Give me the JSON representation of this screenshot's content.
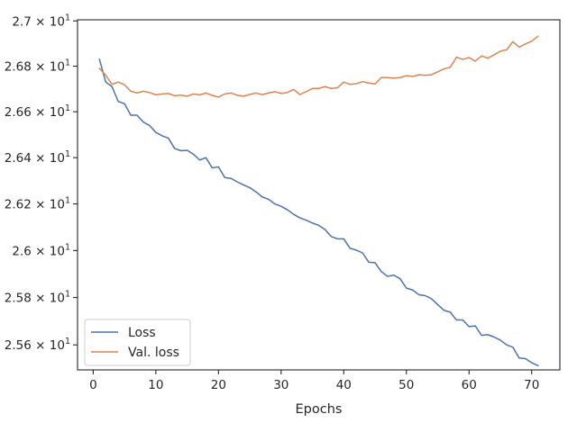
{
  "chart_data": {
    "type": "line",
    "title": "",
    "xlabel": "Epochs",
    "ylabel": "",
    "xlim": [
      -2.5,
      74.5
    ],
    "ylim": [
      25.495,
      27.005
    ],
    "yscale": "log",
    "grid": false,
    "legend_position": "lower-left",
    "x_ticks": [
      0,
      10,
      20,
      30,
      40,
      50,
      60,
      70
    ],
    "y_ticks": [
      {
        "value": 25.6,
        "mantissa": "2.56",
        "base": "10",
        "exp": "1"
      },
      {
        "value": 25.8,
        "mantissa": "2.58",
        "base": "10",
        "exp": "1"
      },
      {
        "value": 26.0,
        "mantissa": "2.6",
        "base": "10",
        "exp": "1"
      },
      {
        "value": 26.2,
        "mantissa": "2.62",
        "base": "10",
        "exp": "1"
      },
      {
        "value": 26.4,
        "mantissa": "2.64",
        "base": "10",
        "exp": "1"
      },
      {
        "value": 26.6,
        "mantissa": "2.66",
        "base": "10",
        "exp": "1"
      },
      {
        "value": 26.8,
        "mantissa": "2.68",
        "base": "10",
        "exp": "1"
      },
      {
        "value": 27.0,
        "mantissa": "2.7",
        "base": "10",
        "exp": "1"
      }
    ],
    "series": [
      {
        "name": "Loss",
        "color": "#4c72b0",
        "x": [
          1,
          2,
          3,
          4,
          5,
          6,
          7,
          8,
          9,
          10,
          11,
          12,
          13,
          14,
          15,
          16,
          17,
          18,
          19,
          20,
          21,
          22,
          23,
          24,
          25,
          26,
          27,
          28,
          29,
          30,
          31,
          32,
          33,
          34,
          35,
          36,
          37,
          38,
          39,
          40,
          41,
          42,
          43,
          44,
          45,
          46,
          47,
          48,
          49,
          50,
          51,
          52,
          53,
          54,
          55,
          56,
          57,
          58,
          59,
          60,
          61,
          62,
          63,
          64,
          65,
          66,
          67,
          68,
          69,
          70,
          71
        ],
        "values": [
          26.83,
          26.73,
          26.71,
          26.645,
          26.635,
          26.585,
          26.585,
          26.555,
          26.54,
          26.51,
          26.495,
          26.485,
          26.44,
          26.43,
          26.432,
          26.415,
          26.39,
          26.4,
          26.356,
          26.36,
          26.314,
          26.31,
          26.295,
          26.282,
          26.27,
          26.252,
          26.23,
          26.22,
          26.2,
          26.19,
          26.175,
          26.155,
          26.14,
          26.13,
          26.118,
          26.108,
          26.09,
          26.06,
          26.05,
          26.05,
          26.01,
          26.002,
          25.99,
          25.95,
          25.948,
          25.91,
          25.89,
          25.895,
          25.88,
          25.84,
          25.832,
          25.812,
          25.808,
          25.795,
          25.77,
          25.746,
          25.738,
          25.705,
          25.705,
          25.677,
          25.68,
          25.64,
          25.643,
          25.633,
          25.62,
          25.6,
          25.59,
          25.545,
          25.542,
          25.525,
          25.513
        ]
      },
      {
        "name": "Val. loss",
        "color": "#dd8452",
        "x": [
          1,
          2,
          3,
          4,
          5,
          6,
          7,
          8,
          9,
          10,
          11,
          12,
          13,
          14,
          15,
          16,
          17,
          18,
          19,
          20,
          21,
          22,
          23,
          24,
          25,
          26,
          27,
          28,
          29,
          30,
          31,
          32,
          33,
          34,
          35,
          36,
          37,
          38,
          39,
          40,
          41,
          42,
          43,
          44,
          45,
          46,
          47,
          48,
          49,
          50,
          51,
          52,
          53,
          54,
          55,
          56,
          57,
          58,
          59,
          60,
          61,
          62,
          63,
          64,
          65,
          66,
          67,
          68,
          69,
          70,
          71
        ],
        "values": [
          26.79,
          26.76,
          26.72,
          26.73,
          26.718,
          26.69,
          26.682,
          26.69,
          26.684,
          26.674,
          26.678,
          26.68,
          26.67,
          26.673,
          26.668,
          26.678,
          26.674,
          26.682,
          26.672,
          26.664,
          26.678,
          26.682,
          26.672,
          26.668,
          26.676,
          26.682,
          26.675,
          26.682,
          26.688,
          26.68,
          26.684,
          26.698,
          26.675,
          26.688,
          26.702,
          26.702,
          26.71,
          26.702,
          26.705,
          26.73,
          26.72,
          26.723,
          26.732,
          26.726,
          26.722,
          26.75,
          26.75,
          26.747,
          26.75,
          26.758,
          26.755,
          26.762,
          26.76,
          26.762,
          26.775,
          26.788,
          26.795,
          26.84,
          26.83,
          26.838,
          26.822,
          26.845,
          26.835,
          26.85,
          26.866,
          26.872,
          26.908,
          26.884,
          26.898,
          26.91,
          26.932
        ]
      }
    ]
  }
}
